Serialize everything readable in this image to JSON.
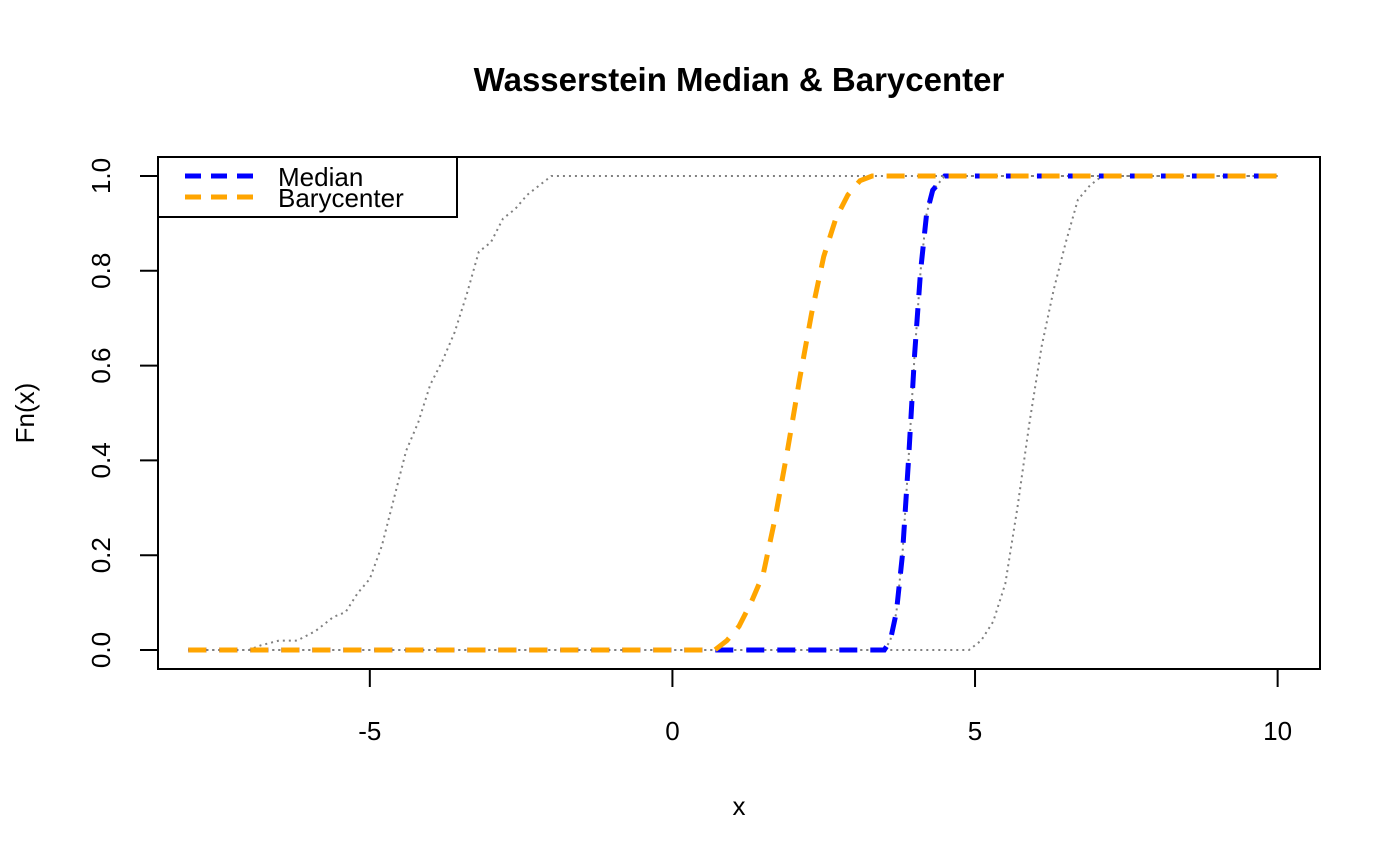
{
  "chart_data": {
    "type": "line",
    "title": "Wasserstein Median & Barycenter",
    "xlabel": "x",
    "ylabel": "Fn(x)",
    "xlim": [
      -8.5,
      10.7
    ],
    "ylim": [
      -0.04,
      1.04
    ],
    "xticks": [
      -5,
      0,
      5,
      10
    ],
    "xtick_labels": [
      "-5",
      "0",
      "5",
      "10"
    ],
    "yticks": [
      0.0,
      0.2,
      0.4,
      0.6,
      0.8,
      1.0
    ],
    "ytick_labels": [
      "0.0",
      "0.2",
      "0.4",
      "0.6",
      "0.8",
      "1.0"
    ],
    "legend": {
      "position": "top-left"
    },
    "series": [
      {
        "role": "input-distribution",
        "color": "#808080",
        "style": "dotted",
        "points": [
          [
            -8.0,
            0.0
          ],
          [
            -7.0,
            0.0
          ],
          [
            -6.8,
            0.01
          ],
          [
            -6.5,
            0.02
          ],
          [
            -6.2,
            0.02
          ],
          [
            -5.9,
            0.04
          ],
          [
            -5.6,
            0.07
          ],
          [
            -5.4,
            0.08
          ],
          [
            -5.2,
            0.12
          ],
          [
            -5.0,
            0.15
          ],
          [
            -4.8,
            0.22
          ],
          [
            -4.6,
            0.32
          ],
          [
            -4.4,
            0.42
          ],
          [
            -4.2,
            0.48
          ],
          [
            -4.0,
            0.56
          ],
          [
            -3.8,
            0.61
          ],
          [
            -3.6,
            0.67
          ],
          [
            -3.4,
            0.75
          ],
          [
            -3.2,
            0.84
          ],
          [
            -3.0,
            0.86
          ],
          [
            -2.8,
            0.91
          ],
          [
            -2.6,
            0.93
          ],
          [
            -2.4,
            0.96
          ],
          [
            -2.2,
            0.98
          ],
          [
            -2.0,
            1.0
          ],
          [
            10.0,
            1.0
          ]
        ]
      },
      {
        "role": "input-distribution",
        "color": "#808080",
        "style": "dotted",
        "points": [
          [
            -8.0,
            0.0
          ],
          [
            4.9,
            0.0
          ],
          [
            5.1,
            0.02
          ],
          [
            5.3,
            0.06
          ],
          [
            5.5,
            0.14
          ],
          [
            5.7,
            0.3
          ],
          [
            5.9,
            0.48
          ],
          [
            6.1,
            0.64
          ],
          [
            6.3,
            0.76
          ],
          [
            6.5,
            0.86
          ],
          [
            6.7,
            0.95
          ],
          [
            6.9,
            0.98
          ],
          [
            7.1,
            1.0
          ],
          [
            10.0,
            1.0
          ]
        ]
      },
      {
        "role": "input-distribution",
        "color": "#808080",
        "style": "dotted",
        "points": [
          [
            -8.0,
            0.0
          ],
          [
            3.5,
            0.0
          ],
          [
            3.6,
            0.02
          ],
          [
            3.7,
            0.08
          ],
          [
            3.8,
            0.2
          ],
          [
            3.9,
            0.4
          ],
          [
            4.0,
            0.62
          ],
          [
            4.1,
            0.8
          ],
          [
            4.2,
            0.92
          ],
          [
            4.3,
            0.97
          ],
          [
            4.5,
            1.0
          ],
          [
            10.0,
            1.0
          ]
        ]
      },
      {
        "name": "Median",
        "color": "#0000ff",
        "style": "dashed",
        "points": [
          [
            -8.0,
            0.0
          ],
          [
            3.5,
            0.0
          ],
          [
            3.6,
            0.02
          ],
          [
            3.7,
            0.08
          ],
          [
            3.8,
            0.2
          ],
          [
            3.9,
            0.4
          ],
          [
            4.0,
            0.62
          ],
          [
            4.1,
            0.8
          ],
          [
            4.2,
            0.92
          ],
          [
            4.3,
            0.97
          ],
          [
            4.5,
            1.0
          ],
          [
            10.0,
            1.0
          ]
        ]
      },
      {
        "name": "Barycenter",
        "color": "#ffa500",
        "style": "dashed",
        "points": [
          [
            -8.0,
            0.0
          ],
          [
            0.7,
            0.0
          ],
          [
            0.9,
            0.02
          ],
          [
            1.1,
            0.05
          ],
          [
            1.3,
            0.1
          ],
          [
            1.5,
            0.16
          ],
          [
            1.7,
            0.28
          ],
          [
            1.9,
            0.42
          ],
          [
            2.1,
            0.57
          ],
          [
            2.3,
            0.71
          ],
          [
            2.5,
            0.83
          ],
          [
            2.7,
            0.91
          ],
          [
            2.9,
            0.96
          ],
          [
            3.1,
            0.99
          ],
          [
            3.3,
            1.0
          ],
          [
            10.0,
            1.0
          ]
        ]
      }
    ]
  }
}
